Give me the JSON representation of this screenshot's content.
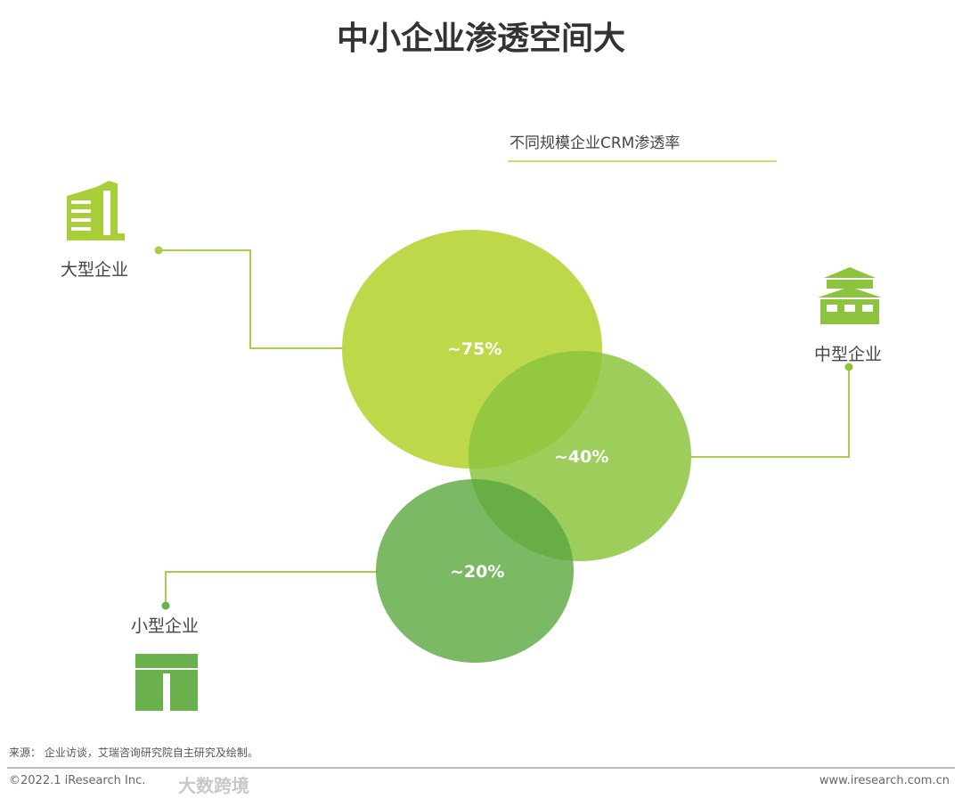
{
  "title": "中小企业渗透空间大",
  "subtitle": "不同规模企业CRM渗透率",
  "segments": [
    {
      "label": "大型企业",
      "value": "~75%",
      "icon": "office-building-icon",
      "color": "#bdd94a"
    },
    {
      "label": "中型企业",
      "value": "~40%",
      "icon": "factory-building-icon",
      "color": "#92c84a"
    },
    {
      "label": "小型企业",
      "value": "~20%",
      "icon": "shop-awning-icon",
      "color": "#5fae45"
    }
  ],
  "footer": {
    "source": "来源： 企业访谈，艾瑞咨询研究院自主研究及绘制。",
    "copyright": "©2022.1 iResearch Inc.",
    "website": "www.iresearch.com.cn",
    "watermark": "大数跨境"
  }
}
